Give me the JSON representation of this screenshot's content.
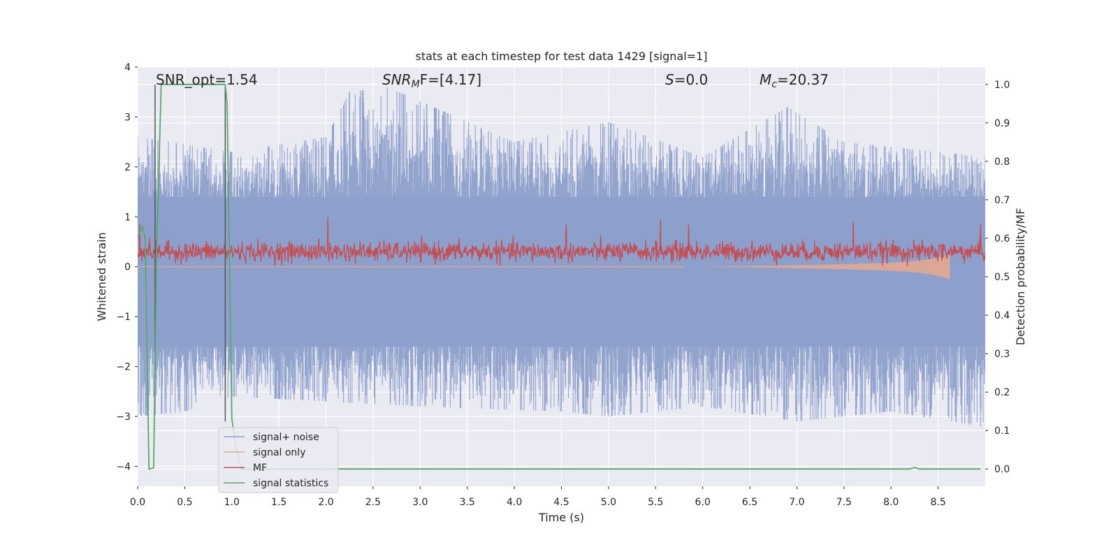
{
  "chart_data": {
    "type": "line",
    "title": "stats at each timestep for test data 1429 [signal=1]",
    "xlabel": "Time (s)",
    "ylabel_left": "Whitened strain",
    "ylabel_right": "Detection probability/MF",
    "xlim": [
      0.0,
      9.0
    ],
    "ylim_left": [
      -4.4,
      4.0
    ],
    "ylim_right": [
      -0.045,
      1.045
    ],
    "x_ticks": [
      "0.0",
      "0.5",
      "1.0",
      "1.5",
      "2.0",
      "2.5",
      "3.0",
      "3.5",
      "4.0",
      "4.5",
      "5.0",
      "5.5",
      "6.0",
      "6.5",
      "7.0",
      "7.5",
      "8.0",
      "8.5"
    ],
    "y_left_ticks": [
      "4",
      "3",
      "2",
      "1",
      "0",
      "−1",
      "−2",
      "−3",
      "−4"
    ],
    "y_right_ticks": [
      "1.0",
      "0.9",
      "0.8",
      "0.7",
      "0.6",
      "0.5",
      "0.4",
      "0.3",
      "0.2",
      "0.1",
      "0.0"
    ],
    "grid": true,
    "background": "#eaeaf2",
    "annotations": [
      {
        "key": "snr_opt",
        "x_data": 0.19,
        "y_data": 3.55
      },
      {
        "key": "snr_mf",
        "x_data": 2.6,
        "y_data": 3.55
      },
      {
        "key": "s_stat",
        "x_data": 5.6,
        "y_data": 3.55
      },
      {
        "key": "mc",
        "x_data": 6.6,
        "y_data": 3.55
      }
    ],
    "vertical_markers": [
      {
        "x": 0.185,
        "y_top": 3.65,
        "y_bottom": -2.6
      },
      {
        "x": 0.93,
        "y_top": 3.65,
        "y_bottom": -3.1
      }
    ],
    "legend": {
      "position": "lower-left"
    },
    "series": [
      {
        "name": "signal+ noise",
        "color": "#8da0cb",
        "axis": "left",
        "kind": "noise",
        "envelope_high": [
          [
            0.0,
            2.6
          ],
          [
            1.0,
            2.3
          ],
          [
            2.0,
            2.6
          ],
          [
            2.25,
            3.5
          ],
          [
            2.65,
            3.6
          ],
          [
            4.0,
            2.5
          ],
          [
            5.0,
            2.9
          ],
          [
            6.0,
            2.2
          ],
          [
            6.9,
            3.2
          ],
          [
            7.5,
            2.5
          ],
          [
            8.0,
            2.4
          ],
          [
            9.0,
            2.2
          ]
        ],
        "envelope_low": [
          [
            0.0,
            -3.0
          ],
          [
            0.5,
            -2.9
          ],
          [
            1.0,
            -2.6
          ],
          [
            2.0,
            -2.7
          ],
          [
            3.0,
            -2.8
          ],
          [
            4.5,
            -2.9
          ],
          [
            5.0,
            -3.0
          ],
          [
            6.0,
            -2.8
          ],
          [
            7.0,
            -3.1
          ],
          [
            8.0,
            -2.9
          ],
          [
            8.95,
            -3.2
          ]
        ],
        "band": [
          -1.6,
          1.4
        ]
      },
      {
        "name": "signal only",
        "color": "#e8a98b",
        "axis": "left",
        "kind": "chirp",
        "points": [
          [
            0.0,
            0.0
          ],
          [
            6.0,
            0.0
          ],
          [
            7.0,
            0.03
          ],
          [
            7.5,
            0.05
          ],
          [
            8.0,
            0.08
          ],
          [
            8.3,
            0.12
          ],
          [
            8.5,
            0.18
          ],
          [
            8.62,
            0.25
          ]
        ]
      },
      {
        "name": "MF",
        "color": "#c44e52",
        "axis": "left",
        "kind": "mf",
        "mean": 0.3,
        "spread": 0.18,
        "peaks": [
          [
            0.02,
            0.85
          ],
          [
            2.02,
            1.0
          ],
          [
            4.55,
            0.85
          ],
          [
            5.55,
            0.95
          ],
          [
            5.85,
            0.85
          ],
          [
            7.6,
            0.9
          ],
          [
            8.95,
            0.85
          ]
        ]
      },
      {
        "name": "signal statistics",
        "color": "#55a868",
        "axis": "right",
        "kind": "line",
        "points": [
          [
            0.0,
            0.6
          ],
          [
            0.05,
            0.63
          ],
          [
            0.08,
            0.6
          ],
          [
            0.12,
            0.0
          ],
          [
            0.17,
            0.003
          ],
          [
            0.2,
            0.55
          ],
          [
            0.25,
            1.0
          ],
          [
            0.93,
            1.0
          ],
          [
            0.95,
            0.95
          ],
          [
            1.0,
            0.13
          ],
          [
            1.05,
            0.05
          ],
          [
            1.1,
            0.0
          ],
          [
            8.2,
            0.0
          ],
          [
            8.25,
            0.004
          ],
          [
            8.3,
            0.0
          ],
          [
            8.95,
            0.0
          ]
        ]
      }
    ]
  },
  "annotations_text": {
    "snr_opt": "SNR_opt=1.54",
    "snr_mf_base": "SNR",
    "snr_mf_sub": "M",
    "snr_mf_rest": "F=[4.17]",
    "s_stat_base": "S",
    "s_stat_rest": "=0.0",
    "mc_base": "M",
    "mc_sub": "c",
    "mc_rest": "=20.37"
  }
}
